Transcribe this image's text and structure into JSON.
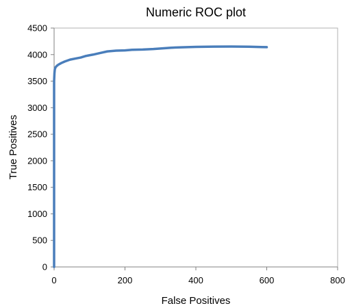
{
  "chart_data": {
    "type": "line",
    "title": "Numeric ROC plot",
    "xlabel": "False Positives",
    "ylabel": "True Positives",
    "xlim": [
      0,
      800
    ],
    "ylim": [
      0,
      4500
    ],
    "x_ticks": [
      0,
      200,
      400,
      600,
      800
    ],
    "y_ticks": [
      0,
      500,
      1000,
      1500,
      2000,
      2500,
      3000,
      3500,
      4000,
      4500
    ],
    "x_tick_labels": [
      "0",
      "200",
      "400",
      "600",
      "800"
    ],
    "y_tick_labels": [
      "0",
      "500",
      "1000",
      "1500",
      "2000",
      "2500",
      "3000",
      "3500",
      "4000",
      "4500"
    ],
    "grid": false,
    "legend": "none",
    "series_color": "#4a7ebb",
    "series": [
      {
        "x": [
          0,
          0,
          1,
          2,
          4,
          8,
          12,
          20,
          30,
          45,
          60,
          75,
          90,
          110,
          130,
          150,
          175,
          200,
          220,
          250,
          280,
          300,
          330,
          360,
          400,
          450,
          500,
          550,
          600
        ],
        "y": [
          0,
          3500,
          3650,
          3720,
          3760,
          3790,
          3810,
          3840,
          3870,
          3905,
          3925,
          3945,
          3975,
          4000,
          4030,
          4060,
          4075,
          4080,
          4090,
          4095,
          4105,
          4115,
          4130,
          4138,
          4145,
          4150,
          4152,
          4148,
          4140
        ]
      }
    ]
  }
}
